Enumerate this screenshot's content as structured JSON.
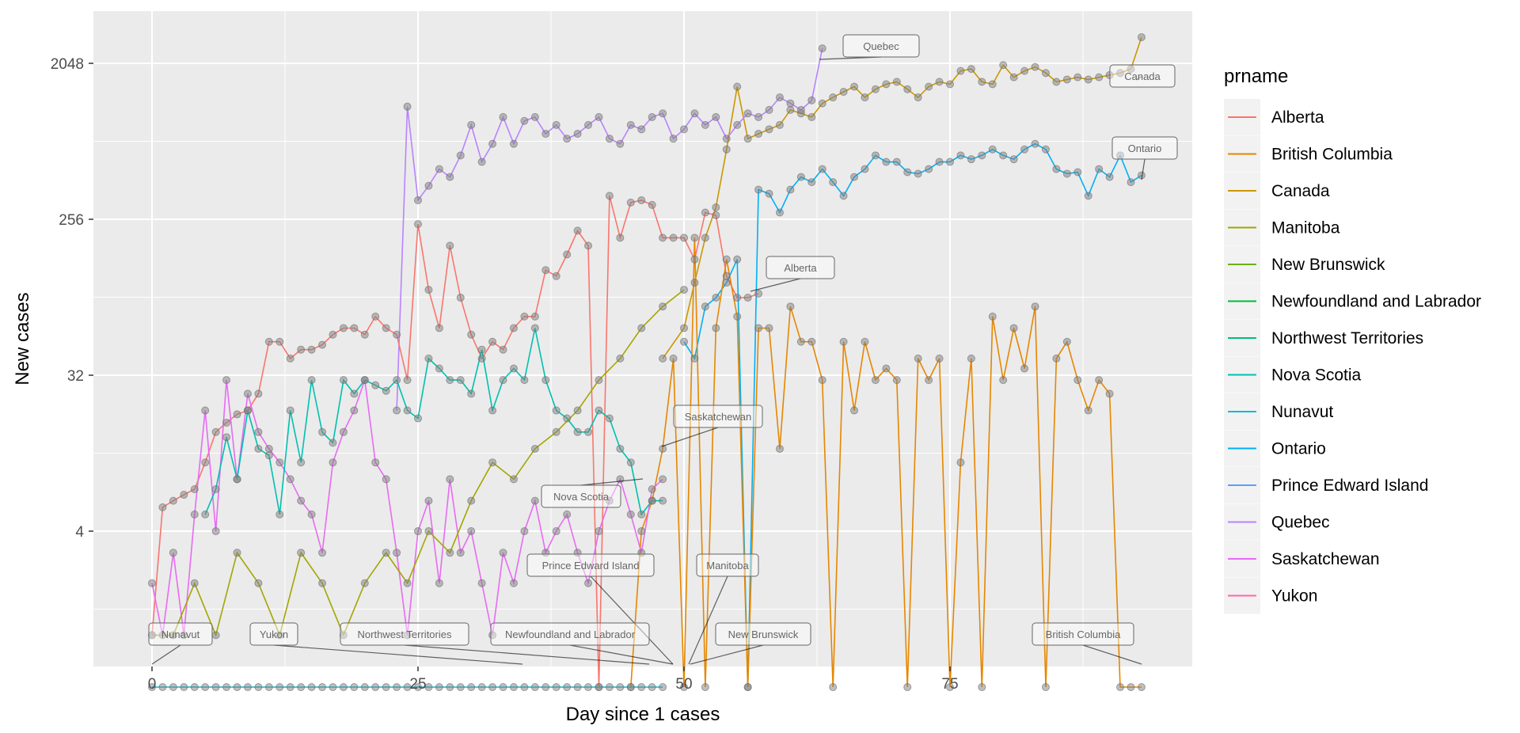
{
  "chart_data": {
    "type": "line",
    "title": "",
    "xlabel": "Day since 1 cases",
    "ylabel": "New cases",
    "y_scale": "log2",
    "xlim": [
      -1,
      97
    ],
    "ylim": [
      0.5,
      3700
    ],
    "x_ticks": [
      0,
      25,
      50,
      75
    ],
    "y_ticks": [
      4,
      32,
      256,
      2048
    ],
    "legend": {
      "title": "prname",
      "position": "right"
    },
    "grid": true,
    "colors": {
      "Alberta": "#F8766D",
      "British Columbia": "#E58700",
      "Canada": "#C99800",
      "Manitoba": "#A3A500",
      "New Brunswick": "#6BB100",
      "Newfoundland and Labrador": "#00BA38",
      "Northwest Territories": "#00BF7D",
      "Nova Scotia": "#00C0AF",
      "Nunavut": "#00BCD8",
      "Ontario": "#00B0F6",
      "Prince Edward Island": "#619CFF",
      "Quebec": "#B983FF",
      "Saskatchewan": "#E76BF3",
      "Yukon": "#FF67A4"
    },
    "series": [
      {
        "name": "Canada",
        "x": [
          48,
          50,
          51,
          52,
          53,
          54,
          55,
          56,
          57,
          58,
          59,
          60,
          61,
          62,
          63,
          64,
          65,
          66,
          67,
          68,
          69,
          70,
          71,
          72,
          73,
          74,
          75,
          76,
          77,
          78,
          79,
          80,
          81,
          82,
          83,
          84,
          85,
          86,
          87,
          88,
          89,
          90,
          91,
          92,
          93
        ],
        "y": [
          40,
          60,
          110,
          200,
          300,
          650,
          1500,
          750,
          800,
          850,
          900,
          1100,
          1050,
          1000,
          1200,
          1300,
          1400,
          1500,
          1300,
          1450,
          1550,
          1600,
          1450,
          1300,
          1500,
          1600,
          1550,
          1850,
          1900,
          1600,
          1550,
          2000,
          1700,
          1850,
          1950,
          1800,
          1600,
          1650,
          1700,
          1650,
          1700,
          1750,
          1800,
          1900,
          2900
        ]
      },
      {
        "name": "Quebec",
        "x": [
          23,
          24,
          25,
          26,
          27,
          28,
          29,
          30,
          31,
          32,
          33,
          34,
          35,
          36,
          37,
          38,
          39,
          40,
          41,
          42,
          43,
          44,
          45,
          46,
          47,
          48,
          49,
          50,
          51,
          52,
          53,
          54,
          55,
          56,
          57,
          58,
          59,
          60,
          61,
          62,
          63
        ],
        "y": [
          20,
          1150,
          330,
          400,
          500,
          450,
          600,
          900,
          550,
          700,
          1000,
          700,
          950,
          1000,
          800,
          900,
          750,
          800,
          900,
          1000,
          750,
          700,
          900,
          850,
          1000,
          1050,
          750,
          850,
          1050,
          900,
          1000,
          750,
          900,
          1050,
          1000,
          1100,
          1300,
          1200,
          1100,
          1250,
          2500
        ]
      },
      {
        "name": "Ontario",
        "x": [
          50,
          51,
          52,
          53,
          54,
          55,
          56,
          57,
          58,
          59,
          60,
          61,
          62,
          63,
          64,
          65,
          66,
          67,
          68,
          69,
          70,
          71,
          72,
          73,
          74,
          75,
          76,
          77,
          78,
          79,
          80,
          81,
          82,
          83,
          84,
          85,
          86,
          87,
          88,
          89,
          90,
          91,
          92,
          93
        ],
        "y": [
          50,
          40,
          80,
          90,
          110,
          150,
          0.5,
          380,
          360,
          280,
          380,
          450,
          420,
          500,
          420,
          350,
          450,
          500,
          600,
          550,
          550,
          480,
          470,
          500,
          550,
          550,
          600,
          570,
          600,
          650,
          600,
          570,
          650,
          700,
          650,
          500,
          470,
          480,
          350,
          500,
          450,
          600,
          420,
          460
        ]
      },
      {
        "name": "Alberta",
        "x": [
          0,
          1,
          2,
          3,
          4,
          5,
          6,
          7,
          8,
          9,
          10,
          11,
          12,
          13,
          14,
          15,
          16,
          17,
          18,
          19,
          20,
          21,
          22,
          23,
          24,
          25,
          26,
          27,
          28,
          29,
          30,
          31,
          32,
          33,
          34,
          35,
          36,
          37,
          38,
          39,
          40,
          41,
          42,
          43,
          44,
          45,
          46,
          47,
          48,
          49,
          50,
          51,
          52,
          53,
          54,
          55,
          56,
          57
        ],
        "y": [
          1,
          5.5,
          6,
          6.5,
          7,
          10,
          15,
          17,
          19,
          20,
          25,
          50,
          50,
          40,
          45,
          45,
          48,
          55,
          60,
          60,
          55,
          70,
          60,
          55,
          30,
          240,
          100,
          60,
          180,
          90,
          55,
          40,
          50,
          45,
          60,
          70,
          70,
          130,
          120,
          160,
          220,
          180,
          0.5,
          350,
          200,
          320,
          330,
          310,
          200,
          200,
          200,
          150,
          280,
          270,
          120,
          90,
          90,
          95
        ]
      },
      {
        "name": "British Columbia",
        "x": [
          45,
          46,
          47,
          48,
          49,
          50,
          51,
          52,
          53,
          54,
          55,
          56,
          57,
          58,
          59,
          60,
          61,
          62,
          63,
          64,
          65,
          66,
          67,
          68,
          69,
          70,
          71,
          72,
          73,
          74,
          75,
          76,
          77,
          78,
          79,
          80,
          81,
          82,
          83,
          84,
          85,
          86,
          87,
          88,
          89,
          90,
          91,
          92,
          93
        ],
        "y": [
          0.5,
          4,
          6,
          12,
          40,
          0.5,
          200,
          0.5,
          60,
          150,
          70,
          0.5,
          60,
          60,
          12,
          80,
          50,
          50,
          30,
          0.5,
          50,
          20,
          50,
          30,
          35,
          30,
          0.5,
          40,
          30,
          40,
          0.5,
          10,
          40,
          0.5,
          70,
          30,
          60,
          35,
          80,
          0.5,
          40,
          50,
          30,
          20,
          30,
          25,
          0.5,
          0.5,
          0.5
        ]
      },
      {
        "name": "Saskatchewan",
        "x": [
          0,
          1,
          2,
          3,
          4,
          5,
          6,
          7,
          8,
          9,
          10,
          11,
          12,
          13,
          14,
          15,
          16,
          17,
          18,
          19,
          20,
          21,
          22,
          23,
          24,
          25,
          26,
          27,
          28,
          29,
          30,
          31,
          32,
          33,
          34,
          35,
          36,
          37,
          38,
          39,
          40,
          41,
          42,
          43,
          44,
          45,
          46,
          47,
          48
        ],
        "y": [
          2,
          1,
          3,
          1,
          5,
          20,
          4,
          30,
          8,
          25,
          15,
          12,
          10,
          8,
          6,
          5,
          3,
          10,
          15,
          20,
          30,
          10,
          8,
          3,
          1,
          4,
          6,
          2,
          8,
          3,
          4,
          2,
          1,
          3,
          2,
          4,
          6,
          3,
          4,
          5,
          3,
          2,
          4,
          6,
          8,
          5,
          3,
          7,
          8
        ]
      },
      {
        "name": "Nova Scotia",
        "x": [
          5,
          6,
          7,
          8,
          9,
          10,
          11,
          12,
          13,
          14,
          15,
          16,
          17,
          18,
          19,
          20,
          21,
          22,
          23,
          24,
          25,
          26,
          27,
          28,
          29,
          30,
          31,
          32,
          33,
          34,
          35,
          36,
          37,
          38,
          39,
          40,
          41,
          42,
          43,
          44,
          45,
          46,
          47,
          48
        ],
        "y": [
          5,
          7,
          14,
          8,
          20,
          12,
          11,
          5,
          20,
          10,
          30,
          15,
          13,
          30,
          25,
          30,
          28,
          26,
          30,
          20,
          18,
          40,
          35,
          30,
          30,
          25,
          45,
          20,
          30,
          35,
          30,
          60,
          30,
          20,
          18,
          15,
          15,
          20,
          18,
          12,
          10,
          5,
          6,
          6
        ]
      },
      {
        "name": "Nunavut",
        "x": [
          0,
          1,
          2,
          3,
          4,
          5,
          6,
          7,
          8,
          9,
          10,
          11,
          12,
          13,
          14,
          15,
          16,
          17,
          18,
          19,
          20,
          21,
          22,
          23,
          24,
          25,
          26,
          27,
          28,
          29,
          30,
          31,
          32,
          33,
          34,
          35,
          36,
          37,
          38,
          39,
          40,
          41,
          42,
          43,
          44,
          45,
          46,
          47,
          48
        ],
        "y": [
          0.5,
          0.5,
          0.5,
          0.5,
          0.5,
          0.5,
          0.5,
          0.5,
          0.5,
          0.5,
          0.5,
          0.5,
          0.5,
          0.5,
          0.5,
          0.5,
          0.5,
          0.5,
          0.5,
          0.5,
          0.5,
          0.5,
          0.5,
          0.5,
          0.5,
          0.5,
          0.5,
          0.5,
          0.5,
          0.5,
          0.5,
          0.5,
          0.5,
          0.5,
          0.5,
          0.5,
          0.5,
          0.5,
          0.5,
          0.5,
          0.5,
          0.5,
          0.5,
          0.5,
          0.5,
          0.5,
          0.5,
          0.5,
          0.5
        ]
      },
      {
        "name": "Manitoba",
        "x": [
          0,
          2,
          4,
          6,
          8,
          10,
          12,
          14,
          16,
          18,
          20,
          22,
          24,
          26,
          28,
          30,
          32,
          34,
          36,
          38,
          40,
          42,
          44,
          46,
          48,
          50
        ],
        "y": [
          1,
          1,
          2,
          1,
          3,
          2,
          1,
          3,
          2,
          1,
          2,
          3,
          2,
          4,
          3,
          6,
          10,
          8,
          12,
          15,
          20,
          30,
          40,
          60,
          80,
          100
        ]
      }
    ],
    "annotations": [
      "Quebec",
      "Canada",
      "Ontario",
      "Alberta",
      "Saskatchewan",
      "Nova Scotia",
      "Prince Edward Island",
      "Manitoba",
      "Nunavut",
      "Yukon",
      "Northwest Territories",
      "Newfoundland and Labrador",
      "New Brunswick",
      "British Columbia"
    ]
  }
}
